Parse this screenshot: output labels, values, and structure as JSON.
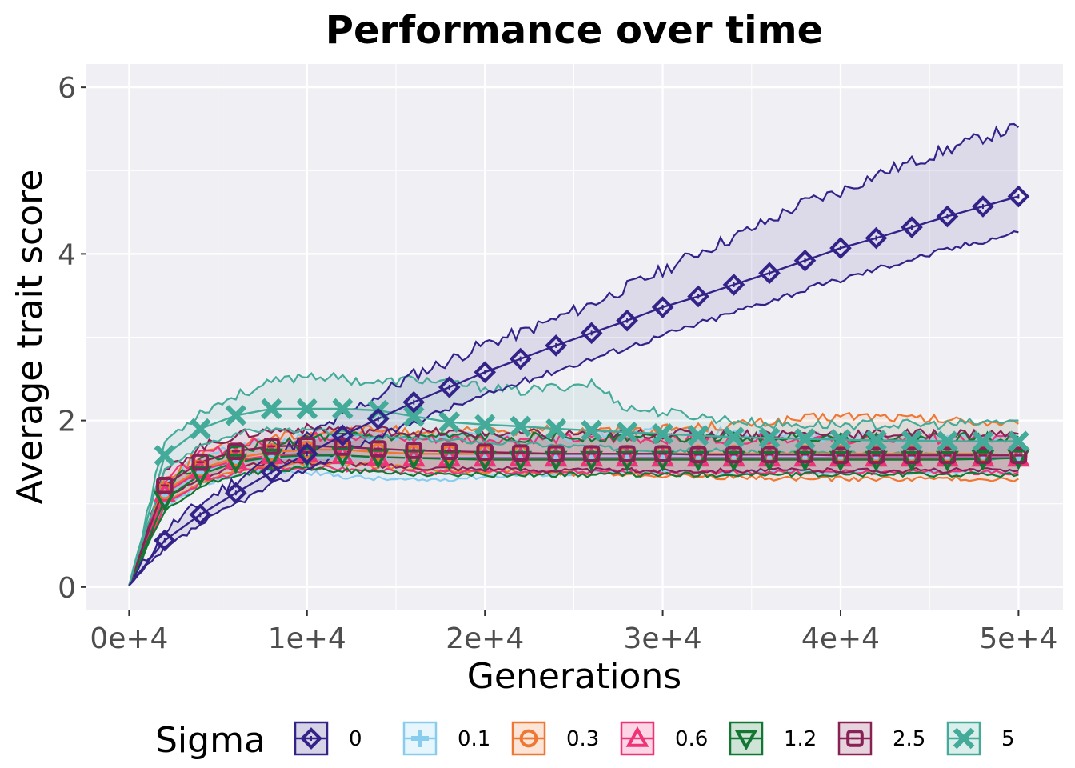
{
  "chart_data": {
    "type": "line",
    "title": "Performance over time",
    "xlabel": "Generations",
    "ylabel": "Average trait score",
    "xlim": [
      -2400,
      52500
    ],
    "ylim": [
      -0.28,
      6.28
    ],
    "xticks": [
      0,
      10000,
      20000,
      30000,
      40000,
      50000
    ],
    "xtick_labels": [
      "0e+4",
      "1e+4",
      "2e+4",
      "3e+4",
      "4e+4",
      "5e+4"
    ],
    "yticks": [
      0,
      2,
      4,
      6
    ],
    "ytick_labels": [
      "0",
      "2",
      "4",
      "6"
    ],
    "grid": true,
    "legend": {
      "title": "Sigma",
      "position": "bottom"
    },
    "x": [
      0,
      2000,
      4000,
      6000,
      8000,
      10000,
      12000,
      14000,
      16000,
      18000,
      20000,
      22000,
      24000,
      26000,
      28000,
      30000,
      32000,
      34000,
      36000,
      38000,
      40000,
      42000,
      44000,
      46000,
      48000,
      50000
    ],
    "series": [
      {
        "name": "0",
        "color": "#332288",
        "marker": "diamond",
        "values": [
          0.02,
          0.56,
          0.87,
          1.13,
          1.38,
          1.6,
          1.82,
          2.02,
          2.22,
          2.4,
          2.58,
          2.74,
          2.9,
          3.05,
          3.2,
          3.36,
          3.49,
          3.63,
          3.77,
          3.92,
          4.07,
          4.19,
          4.32,
          4.45,
          4.57,
          4.69
        ],
        "lower": [
          0.02,
          0.45,
          0.75,
          1.0,
          1.22,
          1.42,
          1.62,
          1.8,
          1.98,
          2.15,
          2.3,
          2.46,
          2.6,
          2.74,
          2.88,
          3.02,
          3.16,
          3.3,
          3.44,
          3.57,
          3.69,
          3.82,
          3.94,
          4.05,
          4.16,
          4.26
        ],
        "upper": [
          0.02,
          0.68,
          1.0,
          1.28,
          1.55,
          1.8,
          2.05,
          2.3,
          2.55,
          2.72,
          2.92,
          3.05,
          3.22,
          3.4,
          3.6,
          3.8,
          4.02,
          4.2,
          4.4,
          4.62,
          4.75,
          4.95,
          5.1,
          5.25,
          5.4,
          5.52
        ]
      },
      {
        "name": "0.1",
        "color": "#88CCEE",
        "marker": "plus",
        "values": [
          0.02,
          1.1,
          1.38,
          1.5,
          1.55,
          1.55,
          1.55,
          1.55,
          1.55,
          1.56,
          1.57,
          1.57,
          1.57,
          1.57,
          1.57,
          1.57,
          1.57,
          1.57,
          1.57,
          1.57,
          1.57,
          1.57,
          1.57,
          1.57,
          1.57,
          1.57
        ],
        "lower": [
          0.02,
          0.95,
          1.22,
          1.35,
          1.4,
          1.38,
          1.33,
          1.3,
          1.28,
          1.3,
          1.33,
          1.35,
          1.36,
          1.37,
          1.38,
          1.38,
          1.38,
          1.38,
          1.38,
          1.38,
          1.38,
          1.38,
          1.38,
          1.38,
          1.38,
          1.38
        ],
        "upper": [
          0.02,
          1.25,
          1.55,
          1.68,
          1.75,
          1.78,
          1.8,
          1.8,
          1.8,
          1.8,
          1.8,
          1.8,
          1.8,
          1.82,
          1.85,
          1.88,
          1.88,
          1.85,
          1.82,
          1.8,
          1.8,
          1.8,
          1.8,
          1.8,
          1.8,
          1.8
        ]
      },
      {
        "name": "0.3",
        "color": "#EE7733",
        "marker": "circle",
        "values": [
          0.02,
          1.15,
          1.42,
          1.55,
          1.62,
          1.65,
          1.65,
          1.62,
          1.6,
          1.6,
          1.6,
          1.6,
          1.6,
          1.6,
          1.6,
          1.6,
          1.6,
          1.6,
          1.6,
          1.6,
          1.6,
          1.6,
          1.6,
          1.6,
          1.6,
          1.58
        ],
        "lower": [
          0.02,
          1.0,
          1.25,
          1.4,
          1.45,
          1.48,
          1.48,
          1.45,
          1.42,
          1.4,
          1.4,
          1.38,
          1.37,
          1.36,
          1.35,
          1.34,
          1.33,
          1.32,
          1.31,
          1.3,
          1.3,
          1.3,
          1.3,
          1.3,
          1.3,
          1.3
        ],
        "upper": [
          0.02,
          1.3,
          1.6,
          1.72,
          1.8,
          1.85,
          1.88,
          1.88,
          1.88,
          1.88,
          1.88,
          1.88,
          1.88,
          1.88,
          1.88,
          1.9,
          1.92,
          1.95,
          1.98,
          2.02,
          2.05,
          2.05,
          2.02,
          2.0,
          1.98,
          1.96
        ]
      },
      {
        "name": "0.6",
        "color": "#EE3377",
        "marker": "triangle-up",
        "values": [
          0.02,
          1.12,
          1.4,
          1.52,
          1.58,
          1.6,
          1.58,
          1.56,
          1.55,
          1.55,
          1.55,
          1.55,
          1.55,
          1.55,
          1.55,
          1.55,
          1.55,
          1.55,
          1.55,
          1.55,
          1.55,
          1.55,
          1.55,
          1.55,
          1.55,
          1.55
        ],
        "lower": [
          0.02,
          0.98,
          1.25,
          1.38,
          1.42,
          1.44,
          1.42,
          1.4,
          1.38,
          1.38,
          1.38,
          1.38,
          1.38,
          1.38,
          1.38,
          1.38,
          1.38,
          1.38,
          1.38,
          1.38,
          1.38,
          1.38,
          1.38,
          1.38,
          1.38,
          1.38
        ],
        "upper": [
          0.02,
          1.28,
          1.58,
          1.7,
          1.76,
          1.8,
          1.82,
          1.8,
          1.78,
          1.78,
          1.78,
          1.78,
          1.78,
          1.78,
          1.78,
          1.78,
          1.78,
          1.78,
          1.78,
          1.78,
          1.78,
          1.78,
          1.78,
          1.78,
          1.78,
          1.78
        ]
      },
      {
        "name": "1.2",
        "color": "#117733",
        "marker": "triangle-down",
        "values": [
          0.02,
          1.05,
          1.35,
          1.5,
          1.56,
          1.58,
          1.58,
          1.56,
          1.55,
          1.54,
          1.53,
          1.53,
          1.53,
          1.53,
          1.53,
          1.53,
          1.53,
          1.53,
          1.53,
          1.53,
          1.53,
          1.53,
          1.53,
          1.53,
          1.54,
          1.55
        ],
        "lower": [
          0.02,
          0.9,
          1.2,
          1.35,
          1.4,
          1.42,
          1.4,
          1.38,
          1.36,
          1.35,
          1.35,
          1.35,
          1.35,
          1.35,
          1.35,
          1.35,
          1.35,
          1.35,
          1.35,
          1.35,
          1.35,
          1.35,
          1.35,
          1.35,
          1.35,
          1.35
        ],
        "upper": [
          0.02,
          1.2,
          1.5,
          1.65,
          1.72,
          1.78,
          1.8,
          1.8,
          1.8,
          1.8,
          1.8,
          1.8,
          1.8,
          1.8,
          1.8,
          1.8,
          1.8,
          1.8,
          1.8,
          1.8,
          1.8,
          1.8,
          1.8,
          1.8,
          1.8,
          1.8
        ]
      },
      {
        "name": "2.5",
        "color": "#882255",
        "marker": "square",
        "values": [
          0.02,
          1.22,
          1.5,
          1.63,
          1.69,
          1.7,
          1.68,
          1.66,
          1.64,
          1.63,
          1.62,
          1.61,
          1.6,
          1.6,
          1.6,
          1.6,
          1.59,
          1.59,
          1.59,
          1.59,
          1.58,
          1.58,
          1.58,
          1.58,
          1.58,
          1.58
        ],
        "lower": [
          0.02,
          1.05,
          1.32,
          1.45,
          1.5,
          1.5,
          1.48,
          1.46,
          1.44,
          1.43,
          1.42,
          1.41,
          1.4,
          1.4,
          1.4,
          1.4,
          1.4,
          1.4,
          1.4,
          1.4,
          1.4,
          1.4,
          1.4,
          1.4,
          1.4,
          1.4
        ],
        "upper": [
          0.02,
          1.38,
          1.68,
          1.82,
          1.88,
          1.9,
          1.9,
          1.88,
          1.86,
          1.85,
          1.84,
          1.84,
          1.84,
          1.84,
          1.84,
          1.84,
          1.84,
          1.84,
          1.84,
          1.84,
          1.84,
          1.84,
          1.84,
          1.84,
          1.84,
          1.84
        ]
      },
      {
        "name": "5",
        "color": "#44AA99",
        "marker": "x",
        "values": [
          0.02,
          1.58,
          1.9,
          2.06,
          2.14,
          2.14,
          2.14,
          2.12,
          2.05,
          1.98,
          1.95,
          1.93,
          1.9,
          1.88,
          1.86,
          1.84,
          1.82,
          1.8,
          1.79,
          1.78,
          1.77,
          1.76,
          1.76,
          1.75,
          1.75,
          1.75
        ],
        "lower": [
          0.02,
          1.4,
          1.7,
          1.85,
          1.9,
          1.88,
          1.85,
          1.8,
          1.78,
          1.76,
          1.74,
          1.72,
          1.7,
          1.68,
          1.66,
          1.65,
          1.64,
          1.63,
          1.62,
          1.61,
          1.6,
          1.6,
          1.6,
          1.58,
          1.56,
          1.55
        ],
        "upper": [
          0.02,
          1.75,
          2.1,
          2.3,
          2.45,
          2.55,
          2.5,
          2.45,
          2.5,
          2.45,
          2.4,
          2.35,
          2.4,
          2.45,
          2.15,
          2.1,
          2.05,
          2.0,
          1.95,
          1.95,
          1.95,
          1.95,
          1.95,
          1.95,
          1.97,
          2.0
        ]
      }
    ]
  }
}
